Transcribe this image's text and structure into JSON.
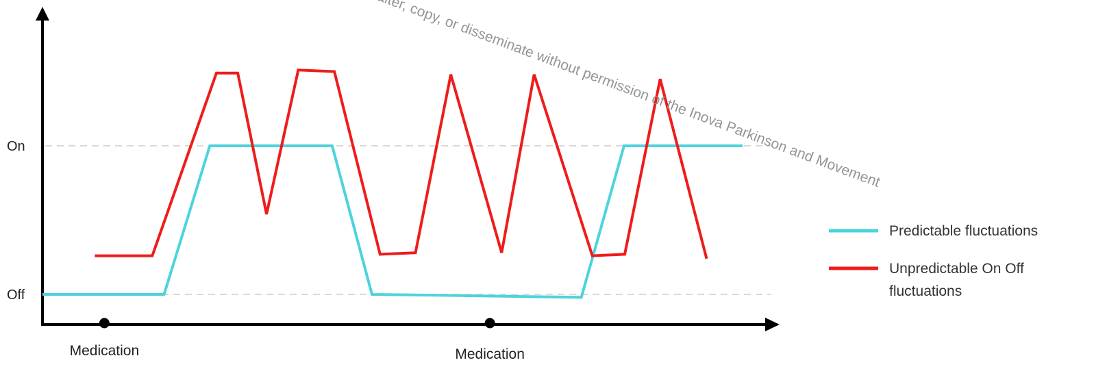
{
  "chart_data": {
    "type": "line",
    "title": "",
    "xlabel": "",
    "ylabel": "",
    "y_levels": [
      {
        "name": "Off",
        "value": 0
      },
      {
        "name": "On",
        "value": 1
      }
    ],
    "ylim": [
      -0.15,
      1.55
    ],
    "xlim": [
      0,
      100
    ],
    "grid": "dashed lines at On and Off levels",
    "medication_events": [
      {
        "label": "Medication",
        "x": 8.4
      },
      {
        "label": "Medication",
        "x": 60.7
      }
    ],
    "series": [
      {
        "name": "Predictable fluctuations",
        "color": "#4dd3dd",
        "points": [
          [
            0,
            0.0
          ],
          [
            16.5,
            0.0
          ],
          [
            22.7,
            1.0
          ],
          [
            39.3,
            1.0
          ],
          [
            44.7,
            0.0
          ],
          [
            73.1,
            -0.02
          ],
          [
            78.9,
            1.0
          ],
          [
            95.0,
            1.0
          ]
        ]
      },
      {
        "name": "Unpredictable On Off fluctuations",
        "color": "#ee1c1c",
        "points": [
          [
            7.1,
            0.26
          ],
          [
            14.9,
            0.26
          ],
          [
            23.6,
            1.49
          ],
          [
            26.5,
            1.49
          ],
          [
            30.4,
            0.54
          ],
          [
            34.7,
            1.51
          ],
          [
            39.6,
            1.5
          ],
          [
            45.8,
            0.27
          ],
          [
            50.6,
            0.28
          ],
          [
            55.4,
            1.48
          ],
          [
            62.3,
            0.28
          ],
          [
            66.7,
            1.48
          ],
          [
            74.6,
            0.26
          ],
          [
            79.0,
            0.27
          ],
          [
            83.8,
            1.45
          ],
          [
            90.1,
            0.24
          ]
        ]
      }
    ],
    "legend": {
      "placement": "right",
      "entries": [
        {
          "lines": [
            "Predictable fluctuations"
          ],
          "color": "#4dd3dd"
        },
        {
          "lines": [
            "Unpredictable On Off",
            "fluctuations"
          ],
          "color": "#ee1c1c"
        }
      ]
    }
  },
  "watermark": {
    "text": "Kindly do not alter, copy, or disseminate without permission of the Inova Parkinson and Movement"
  }
}
